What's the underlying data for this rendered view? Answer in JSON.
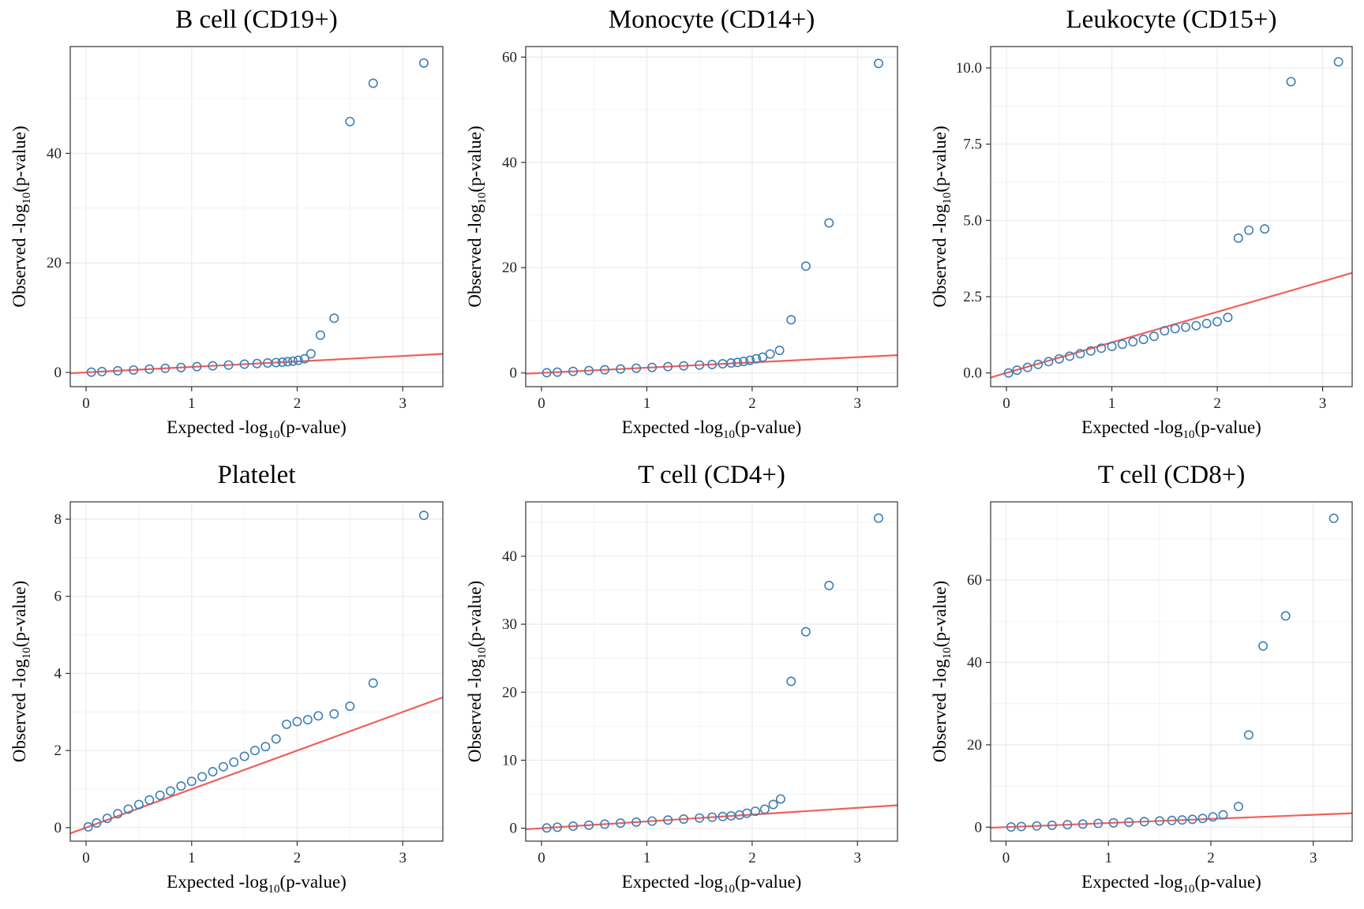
{
  "colors": {
    "points": "#3f7fb5",
    "reference_line": "#f0605a"
  },
  "chart_data": [
    {
      "type": "scatter",
      "title": "B cell (CD19+)",
      "xlabel": "Expected -log10(p-value)",
      "ylabel": "Observed -log10(p-value)",
      "xlim": [
        -0.15,
        3.38
      ],
      "ylim": [
        -2.6,
        59.5
      ],
      "xticks": [
        0,
        1,
        2,
        3
      ],
      "yticks": [
        0,
        20,
        40
      ],
      "reference_line": {
        "slope": 1,
        "intercept": 0
      },
      "series": [
        {
          "x": [
            0.05,
            0.15,
            0.3,
            0.45,
            0.6,
            0.75,
            0.9,
            1.05,
            1.2,
            1.35,
            1.5,
            1.62,
            1.72,
            1.8,
            1.86,
            1.91,
            1.96,
            2.01,
            2.07,
            2.13,
            2.22,
            2.35,
            2.5,
            2.72,
            3.2
          ],
          "y": [
            0.05,
            0.15,
            0.3,
            0.45,
            0.6,
            0.75,
            0.9,
            1.05,
            1.2,
            1.35,
            1.5,
            1.62,
            1.72,
            1.8,
            1.86,
            1.95,
            2.05,
            2.2,
            2.5,
            3.4,
            6.8,
            9.9,
            45.8,
            52.8,
            56.5
          ]
        }
      ]
    },
    {
      "type": "scatter",
      "title": "Monocyte (CD14+)",
      "xlabel": "Expected -log10(p-value)",
      "ylabel": "Observed -log10(p-value)",
      "xlim": [
        -0.15,
        3.38
      ],
      "ylim": [
        -2.6,
        62.0
      ],
      "xticks": [
        0,
        1,
        2,
        3
      ],
      "yticks": [
        0,
        20,
        40,
        60
      ],
      "reference_line": {
        "slope": 1,
        "intercept": 0
      },
      "series": [
        {
          "x": [
            0.05,
            0.15,
            0.3,
            0.45,
            0.6,
            0.75,
            0.9,
            1.05,
            1.2,
            1.35,
            1.5,
            1.62,
            1.72,
            1.8,
            1.86,
            1.92,
            1.98,
            2.04,
            2.1,
            2.17,
            2.26,
            2.37,
            2.51,
            2.73,
            3.2
          ],
          "y": [
            0.05,
            0.15,
            0.3,
            0.45,
            0.6,
            0.75,
            0.9,
            1.05,
            1.2,
            1.35,
            1.5,
            1.62,
            1.75,
            1.9,
            2.0,
            2.2,
            2.4,
            2.7,
            3.0,
            3.6,
            4.3,
            10.1,
            20.3,
            28.5,
            58.8
          ]
        }
      ]
    },
    {
      "type": "scatter",
      "title": "Leukocyte (CD15+)",
      "xlabel": "Expected -log10(p-value)",
      "ylabel": "Observed -log10(p-value)",
      "xlim": [
        -0.15,
        3.28
      ],
      "ylim": [
        -0.45,
        10.7
      ],
      "xticks": [
        0,
        1,
        2,
        3
      ],
      "yticks": [
        0.0,
        2.5,
        5.0,
        7.5,
        10.0
      ],
      "ytick_labels": [
        "0.0",
        "2.5",
        "5.0",
        "7.5",
        "10.0"
      ],
      "reference_line": {
        "slope": 1,
        "intercept": 0
      },
      "series": [
        {
          "x": [
            0.02,
            0.1,
            0.2,
            0.3,
            0.4,
            0.5,
            0.6,
            0.7,
            0.8,
            0.9,
            1.0,
            1.1,
            1.2,
            1.3,
            1.4,
            1.5,
            1.6,
            1.7,
            1.8,
            1.9,
            2.0,
            2.1,
            2.2,
            2.3,
            2.45,
            2.7,
            3.15
          ],
          "y": [
            0.0,
            0.09,
            0.18,
            0.28,
            0.37,
            0.46,
            0.55,
            0.63,
            0.72,
            0.81,
            0.87,
            0.94,
            1.02,
            1.1,
            1.2,
            1.38,
            1.45,
            1.5,
            1.55,
            1.62,
            1.68,
            1.82,
            4.42,
            4.68,
            4.72,
            9.55,
            10.2
          ]
        }
      ]
    },
    {
      "type": "scatter",
      "title": "Platelet",
      "xlabel": "Expected -log10(p-value)",
      "ylabel": "Observed -log10(p-value)",
      "xlim": [
        -0.15,
        3.38
      ],
      "ylim": [
        -0.35,
        8.45
      ],
      "xticks": [
        0,
        1,
        2,
        3
      ],
      "yticks": [
        0,
        2,
        4,
        6,
        8
      ],
      "reference_line": {
        "slope": 1,
        "intercept": 0
      },
      "series": [
        {
          "x": [
            0.02,
            0.1,
            0.2,
            0.3,
            0.4,
            0.5,
            0.6,
            0.7,
            0.8,
            0.9,
            1.0,
            1.1,
            1.2,
            1.3,
            1.4,
            1.5,
            1.6,
            1.7,
            1.8,
            1.9,
            2.0,
            2.1,
            2.2,
            2.35,
            2.5,
            2.72,
            3.2
          ],
          "y": [
            0.02,
            0.12,
            0.24,
            0.36,
            0.48,
            0.6,
            0.72,
            0.84,
            0.95,
            1.08,
            1.2,
            1.32,
            1.45,
            1.58,
            1.7,
            1.85,
            2.0,
            2.1,
            2.3,
            2.68,
            2.75,
            2.8,
            2.9,
            2.95,
            3.15,
            3.75,
            8.1
          ]
        }
      ]
    },
    {
      "type": "scatter",
      "title": "T cell (CD4+)",
      "xlabel": "Expected -log10(p-value)",
      "ylabel": "Observed -log10(p-value)",
      "xlim": [
        -0.15,
        3.38
      ],
      "ylim": [
        -1.9,
        48.0
      ],
      "xticks": [
        0,
        1,
        2,
        3
      ],
      "yticks": [
        0,
        10,
        20,
        30,
        40
      ],
      "reference_line": {
        "slope": 1,
        "intercept": 0
      },
      "series": [
        {
          "x": [
            0.05,
            0.15,
            0.3,
            0.45,
            0.6,
            0.75,
            0.9,
            1.05,
            1.2,
            1.35,
            1.5,
            1.62,
            1.72,
            1.8,
            1.88,
            1.95,
            2.03,
            2.12,
            2.2,
            2.27,
            2.37,
            2.51,
            2.73,
            3.2
          ],
          "y": [
            0.05,
            0.15,
            0.3,
            0.45,
            0.6,
            0.75,
            0.9,
            1.05,
            1.2,
            1.35,
            1.5,
            1.62,
            1.72,
            1.82,
            1.95,
            2.2,
            2.5,
            2.8,
            3.5,
            4.3,
            21.6,
            28.9,
            35.7,
            45.6
          ]
        }
      ]
    },
    {
      "type": "scatter",
      "title": "T cell (CD8+)",
      "xlabel": "Expected -log10(p-value)",
      "ylabel": "Observed -log10(p-value)",
      "xlim": [
        -0.15,
        3.38
      ],
      "ylim": [
        -3.4,
        79.0
      ],
      "xticks": [
        0,
        1,
        2,
        3
      ],
      "yticks": [
        0,
        20,
        40,
        60
      ],
      "reference_line": {
        "slope": 1,
        "intercept": 0
      },
      "series": [
        {
          "x": [
            0.05,
            0.15,
            0.3,
            0.45,
            0.6,
            0.75,
            0.9,
            1.05,
            1.2,
            1.35,
            1.5,
            1.62,
            1.72,
            1.82,
            1.92,
            2.02,
            2.12,
            2.27,
            2.37,
            2.51,
            2.73,
            3.2
          ],
          "y": [
            0.05,
            0.15,
            0.3,
            0.45,
            0.6,
            0.75,
            0.9,
            1.05,
            1.2,
            1.35,
            1.5,
            1.62,
            1.75,
            1.9,
            2.1,
            2.5,
            3.0,
            5.0,
            22.4,
            44.0,
            51.3,
            75.0
          ]
        }
      ]
    }
  ]
}
